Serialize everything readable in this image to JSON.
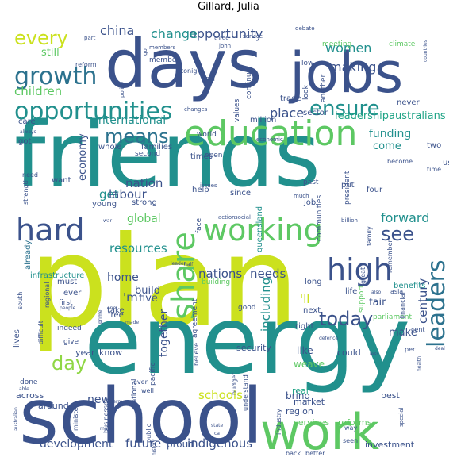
{
  "chart_data": {
    "type": "wordcloud",
    "title": "Gillard, Julia",
    "colors": {
      "c1": "#cbe11e",
      "c2": "#5dc863",
      "c3": "#21908d",
      "c4": "#2c728e",
      "c5": "#3b528b",
      "c6": "#472d7b",
      "c7": "#440154",
      "c8": "#8fd744",
      "c9": "#20a486",
      "c10": "#31688e"
    },
    "words": [
      {
        "text": "friends",
        "weight": 100
      },
      {
        "text": "plan",
        "weight": 98
      },
      {
        "text": "energy",
        "weight": 92
      },
      {
        "text": "school",
        "weight": 80
      },
      {
        "text": "days",
        "weight": 75
      },
      {
        "text": "jobs",
        "weight": 70
      },
      {
        "text": "work",
        "weight": 60
      },
      {
        "text": "education",
        "weight": 50
      },
      {
        "text": "working",
        "weight": 45
      },
      {
        "text": "hard",
        "weight": 42
      },
      {
        "text": "high",
        "weight": 40
      },
      {
        "text": "share",
        "weight": 38
      },
      {
        "text": "opportunities",
        "weight": 35
      },
      {
        "text": "growth",
        "weight": 34
      },
      {
        "text": "leaders",
        "weight": 32
      },
      {
        "text": "ensure",
        "weight": 30
      },
      {
        "text": "today",
        "weight": 29
      },
      {
        "text": "means",
        "weight": 28
      },
      {
        "text": "every",
        "weight": 27
      },
      {
        "text": "day",
        "weight": 26
      },
      {
        "text": "see",
        "weight": 26
      },
      {
        "text": "forward",
        "weight": 22
      },
      {
        "text": "opportunity",
        "weight": 20
      },
      {
        "text": "change",
        "weight": 19
      },
      {
        "text": "china",
        "weight": 18
      },
      {
        "text": "women",
        "weight": 18
      },
      {
        "text": "making",
        "weight": 18
      },
      {
        "text": "children",
        "weight": 17
      },
      {
        "text": "place",
        "weight": 17
      },
      {
        "text": "nation",
        "weight": 17
      },
      {
        "text": "get",
        "weight": 17
      },
      {
        "text": "labour",
        "weight": 16
      },
      {
        "text": "resources",
        "weight": 16
      },
      {
        "text": "nations",
        "weight": 16
      },
      {
        "text": "needs",
        "weight": 16
      },
      {
        "text": "including",
        "weight": 16
      },
      {
        "text": "century",
        "weight": 15
      },
      {
        "text": "schools",
        "weight": 15
      },
      {
        "text": "'ll",
        "weight": 15
      },
      {
        "text": "'m",
        "weight": 15
      },
      {
        "text": "home",
        "weight": 15
      },
      {
        "text": "international",
        "weight": 14
      },
      {
        "text": "economy",
        "weight": 14
      },
      {
        "text": "funding",
        "weight": 14
      },
      {
        "text": "global",
        "weight": 14
      },
      {
        "text": "together",
        "weight": 14
      },
      {
        "text": "future",
        "weight": 14
      },
      {
        "text": "indigenous",
        "weight": 14
      },
      {
        "text": "new",
        "weight": 14
      },
      {
        "text": "development",
        "weight": 13
      },
      {
        "text": "still",
        "weight": 13
      },
      {
        "text": "leadership",
        "weight": 13
      },
      {
        "text": "australians",
        "weight": 13
      },
      {
        "text": "come",
        "weight": 13
      },
      {
        "text": "make",
        "weight": 13
      },
      {
        "text": "fair",
        "weight": 13
      },
      {
        "text": "build",
        "weight": 13
      },
      {
        "text": "five",
        "weight": 13
      },
      {
        "text": "weave",
        "weight": 12
      },
      {
        "text": "like",
        "weight": 12
      },
      {
        "text": "real",
        "weight": 12
      },
      {
        "text": "bring",
        "weight": 12
      },
      {
        "text": "proud",
        "weight": 12
      },
      {
        "text": "services",
        "weight": 11
      },
      {
        "text": "reforms",
        "weight": 11
      },
      {
        "text": "investment",
        "weight": 11
      },
      {
        "text": "year",
        "weight": 11
      },
      {
        "text": "know",
        "weight": 11
      },
      {
        "text": "security",
        "weight": 11
      },
      {
        "text": "could",
        "weight": 11
      },
      {
        "text": "best",
        "weight": 11
      },
      {
        "text": "market",
        "weight": 11
      },
      {
        "text": "region",
        "weight": 11
      },
      {
        "text": "across",
        "weight": 11
      },
      {
        "text": "around",
        "weight": 11
      },
      {
        "text": "infrastructure",
        "weight": 10
      },
      {
        "text": "benefits",
        "weight": 10
      },
      {
        "text": "already",
        "weight": 10
      },
      {
        "text": "lives",
        "weight": 10
      },
      {
        "text": "queensland",
        "weight": 10
      },
      {
        "text": "four",
        "weight": 10
      },
      {
        "text": "put",
        "weight": 10
      },
      {
        "text": "young",
        "weight": 10
      },
      {
        "text": "strong",
        "weight": 10
      },
      {
        "text": "help",
        "weight": 10
      },
      {
        "text": "job",
        "weight": 10
      },
      {
        "text": "since",
        "weight": 10
      },
      {
        "text": "families",
        "weight": 10
      },
      {
        "text": "times",
        "weight": 10
      },
      {
        "text": "whole",
        "weight": 10
      },
      {
        "text": "got",
        "weight": 10
      },
      {
        "text": "care",
        "weight": 10
      },
      {
        "text": "want",
        "weight": 10
      },
      {
        "text": "million",
        "weight": 10
      },
      {
        "text": "trade",
        "weight": 10
      },
      {
        "text": "sector",
        "weight": 10
      },
      {
        "text": "never",
        "weight": 10
      },
      {
        "text": "two",
        "weight": 10
      },
      {
        "text": "us",
        "weight": 10
      },
      {
        "text": "life",
        "weight": 10
      },
      {
        "text": "long",
        "weight": 10
      },
      {
        "text": "next",
        "weight": 10
      },
      {
        "text": "right",
        "weight": 10
      },
      {
        "text": "must",
        "weight": 10
      },
      {
        "text": "ever",
        "weight": 10
      },
      {
        "text": "take",
        "weight": 10
      },
      {
        "text": "free",
        "weight": 10
      },
      {
        "text": "first",
        "weight": 9
      },
      {
        "text": "give",
        "weight": 9
      },
      {
        "text": "done",
        "weight": 9
      },
      {
        "text": "indeed",
        "weight": 9
      },
      {
        "text": "building",
        "weight": 9
      },
      {
        "text": "agreement",
        "weight": 9
      },
      {
        "text": "national",
        "weight": 9
      },
      {
        "text": "pacific",
        "weight": 9
      },
      {
        "text": "good",
        "weight": 9
      },
      {
        "text": "parliament",
        "weight": 9
      },
      {
        "text": "support",
        "weight": 9
      },
      {
        "text": "meeting",
        "weight": 9
      },
      {
        "text": "climate",
        "weight": 9
      },
      {
        "text": "low",
        "weight": 9
      },
      {
        "text": "look",
        "weight": 9
      },
      {
        "text": "continue",
        "weight": 9
      },
      {
        "text": "values",
        "weight": 9
      },
      {
        "text": "president",
        "weight": 9
      },
      {
        "text": "communities",
        "weight": 9
      },
      {
        "text": "past",
        "weight": 9
      },
      {
        "text": "face",
        "weight": 9
      },
      {
        "text": "end",
        "weight": 9
      },
      {
        "text": "another",
        "weight": 9
      },
      {
        "text": "world",
        "weight": 9
      },
      {
        "text": "open",
        "weight": 9
      },
      {
        "text": "second",
        "weight": 9
      },
      {
        "text": "member",
        "weight": 9
      },
      {
        "text": "reform",
        "weight": 8
      },
      {
        "text": "tonight",
        "weight": 8
      },
      {
        "text": "strength",
        "weight": 8
      },
      {
        "text": "need",
        "weight": 8
      },
      {
        "text": "regional",
        "weight": 8
      },
      {
        "text": "south",
        "weight": 8
      },
      {
        "text": "difficult",
        "weight": 8
      },
      {
        "text": "cent",
        "weight": 8
      },
      {
        "text": "per",
        "weight": 8
      },
      {
        "text": "financial",
        "weight": 8
      },
      {
        "text": "asia",
        "weight": 8
      },
      {
        "text": "great",
        "weight": 8
      },
      {
        "text": "family",
        "weight": 8
      },
      {
        "text": "remember",
        "weight": 8
      },
      {
        "text": "become",
        "weight": 8
      },
      {
        "text": "time",
        "weight": 8
      },
      {
        "text": "understand",
        "weight": 8
      },
      {
        "text": "believe",
        "weight": 8
      },
      {
        "text": "budget",
        "weight": 8
      },
      {
        "text": "industry",
        "weight": 8
      },
      {
        "text": "public",
        "weight": 8
      },
      {
        "text": "even",
        "weight": 8
      },
      {
        "text": "well",
        "weight": 8
      },
      {
        "text": "minister",
        "weight": 8
      },
      {
        "text": "businesses",
        "weight": 8
      },
      {
        "text": "better",
        "weight": 8
      },
      {
        "text": "back",
        "weight": 8
      },
      {
        "text": "seen",
        "weight": 8
      },
      {
        "text": "way",
        "weight": 8
      },
      {
        "text": "special",
        "weight": 7
      },
      {
        "text": "debate",
        "weight": 7
      },
      {
        "text": "go",
        "weight": 7
      },
      {
        "text": "part",
        "weight": 7
      },
      {
        "text": "members",
        "weight": 7
      },
      {
        "text": "three",
        "weight": 7
      },
      {
        "text": "john",
        "weight": 7
      },
      {
        "text": "service",
        "weight": 7
      },
      {
        "text": "policy",
        "weight": 7
      },
      {
        "text": "changes",
        "weight": 7
      },
      {
        "text": "economic",
        "weight": 7
      },
      {
        "text": "issues",
        "weight": 7
      },
      {
        "text": "much",
        "weight": 7
      },
      {
        "text": "billion",
        "weight": 7
      },
      {
        "text": "action",
        "weight": 7
      },
      {
        "text": "social",
        "weight": 7
      },
      {
        "text": "war",
        "weight": 6
      },
      {
        "text": "half",
        "weight": 6
      },
      {
        "text": "leader",
        "weight": 6
      },
      {
        "text": "always",
        "weight": 6
      },
      {
        "text": "prime",
        "weight": 6
      },
      {
        "text": "people",
        "weight": 6
      },
      {
        "text": "made",
        "weight": 6
      },
      {
        "text": "one",
        "weight": 6
      },
      {
        "text": "also",
        "weight": 6
      },
      {
        "text": "defence",
        "weight": 6
      },
      {
        "text": "less",
        "weight": 6
      },
      {
        "text": "deal",
        "weight": 6
      },
      {
        "text": "health",
        "weight": 6
      },
      {
        "text": "countries",
        "weight": 6
      },
      {
        "text": "able",
        "weight": 6
      },
      {
        "text": "australian",
        "weight": 6
      },
      {
        "text": "term",
        "weight": 6
      },
      {
        "text": "many",
        "weight": 6
      },
      {
        "text": "history",
        "weight": 6
      },
      {
        "text": "state",
        "weight": 6
      },
      {
        "text": "ca",
        "weight": 6
      }
    ]
  }
}
